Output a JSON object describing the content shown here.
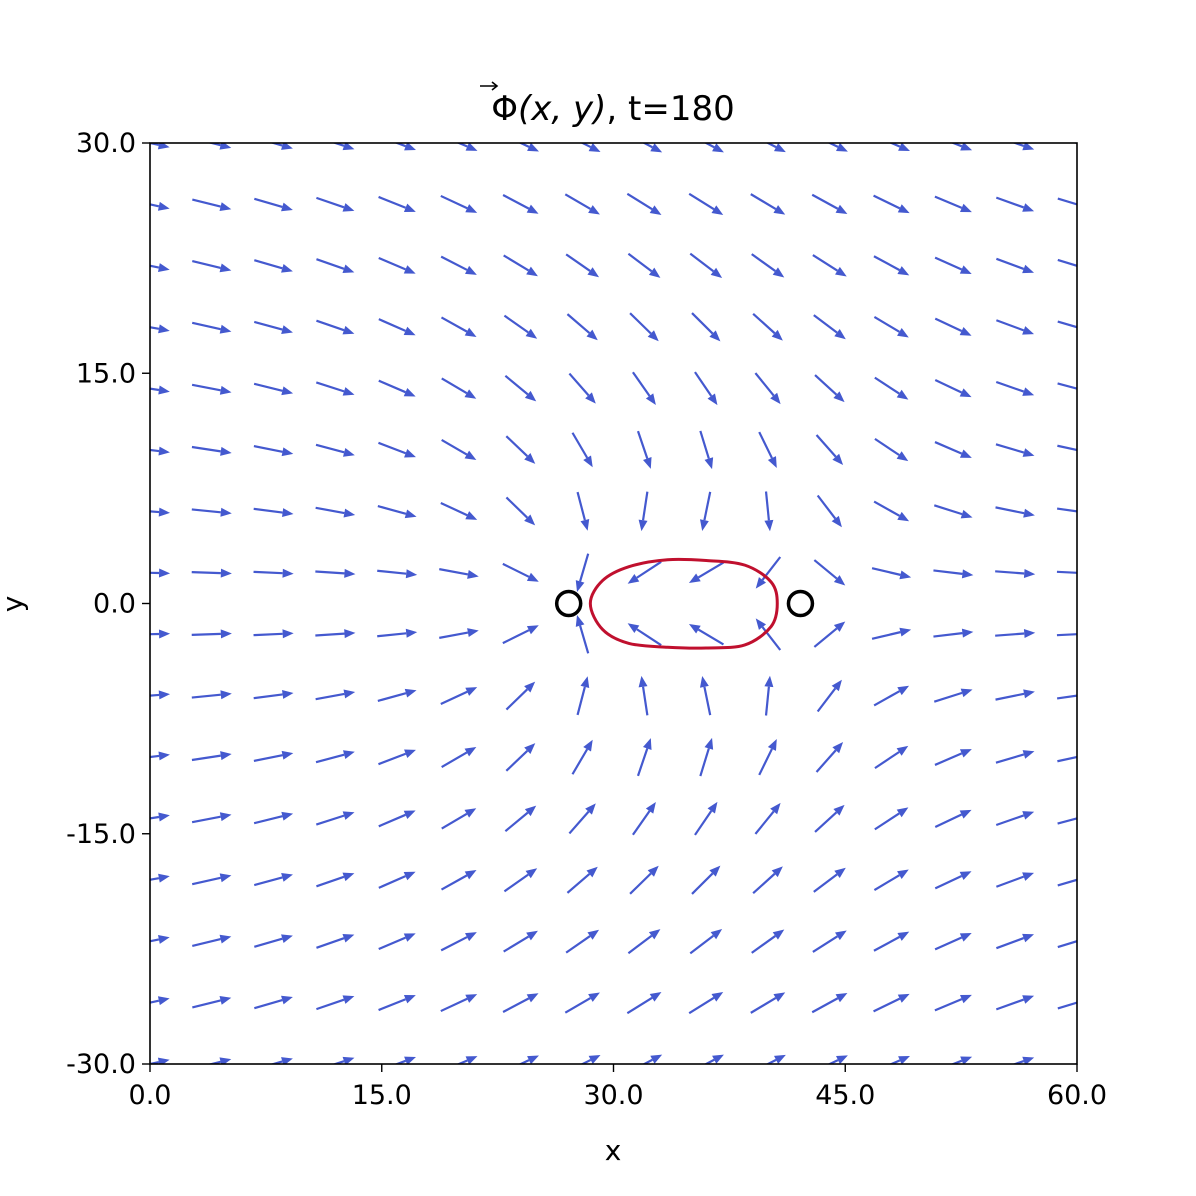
{
  "chart_data": {
    "type": "quiver",
    "title_prefix": "Φ",
    "title_args": "(x, y)",
    "title_suffix": ", t=180",
    "xlabel": "x",
    "ylabel": "y",
    "xlim": [
      0,
      60
    ],
    "ylim": [
      -30,
      30
    ],
    "xticks": [
      0,
      15,
      30,
      45,
      60
    ],
    "yticks": [
      -30,
      -15,
      0,
      15,
      30
    ],
    "xtick_labels": [
      "0.0",
      "15.0",
      "30.0",
      "45.0",
      "60.0"
    ],
    "ytick_labels": [
      "-30.0",
      "-15.0",
      "0.0",
      "15.0",
      "30.0"
    ],
    "grid": false,
    "arrow_color": "#4459cf",
    "contour_color": "#c0102e",
    "marker_color": "#000000",
    "vortex_centers": [
      {
        "x": 27.1,
        "y": 0.0
      },
      {
        "x": 42.1,
        "y": 0.0
      }
    ],
    "vector_field": {
      "grid_x_start": 0,
      "grid_x_step": 4,
      "grid_x_count": 16,
      "grid_y_start": -30,
      "grid_y_step": 4,
      "grid_y_count": 16,
      "model": "dipole vortex pair",
      "vortex_a": {
        "x": 27.1,
        "y": 0.0,
        "winding": 1,
        "phase_deg": 0
      },
      "vortex_b": {
        "x": 42.1,
        "y": 0.0,
        "winding": -1,
        "phase_deg": 0
      },
      "arrow_length": 2.6
    },
    "contour": {
      "level": "closed loop",
      "points": [
        [
          28.5,
          0.0
        ],
        [
          29.3,
          1.5
        ],
        [
          31.0,
          2.4
        ],
        [
          33.5,
          2.85
        ],
        [
          36.0,
          2.8
        ],
        [
          38.5,
          2.5
        ],
        [
          40.2,
          1.4
        ],
        [
          40.6,
          0.0
        ],
        [
          40.2,
          -1.5
        ],
        [
          38.5,
          -2.7
        ],
        [
          36.0,
          -2.9
        ],
        [
          33.5,
          -2.85
        ],
        [
          31.0,
          -2.6
        ],
        [
          29.3,
          -1.7
        ],
        [
          28.5,
          0.0
        ]
      ]
    }
  }
}
